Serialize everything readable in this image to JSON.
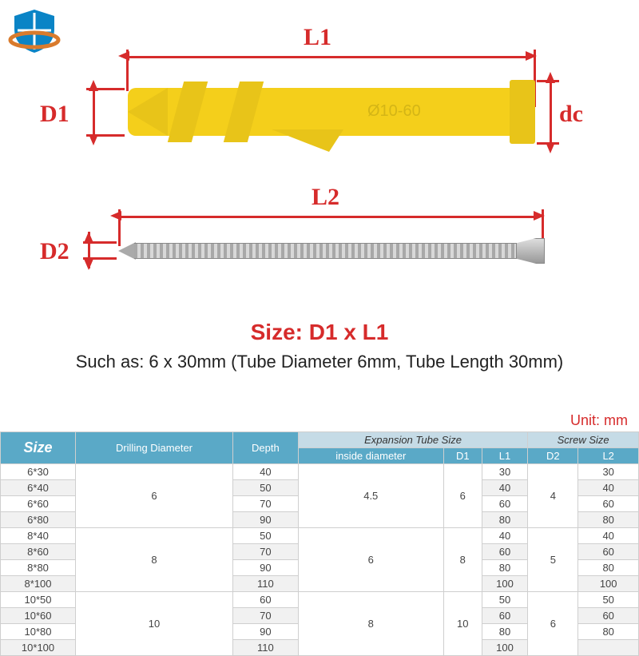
{
  "colors": {
    "accent_red": "#d62b2b",
    "anchor_yellow": "#f4cf1b",
    "table_header_bg": "#5aa9c7",
    "table_group_bg": "#c5dbe6",
    "table_border": "#cfcfcf",
    "alt_row": "#f1f1f1",
    "logo_blue": "#0a84c6",
    "logo_orange": "#d97b2d"
  },
  "labels": {
    "L1": "L1",
    "D1": "D1",
    "dc": "dc",
    "L2": "L2",
    "D2": "D2",
    "emboss": "Ø10-60"
  },
  "size_title": "Size: D1 x L1",
  "size_sub": "Such as: 6 x 30mm (Tube Diameter 6mm, Tube Length 30mm)",
  "unit": "Unit: mm",
  "table": {
    "headers": {
      "size": "Size",
      "drill": "Drilling Diameter",
      "depth": "Depth",
      "expansion": "Expansion Tube Size",
      "screw": "Screw Size",
      "inside": "inside diameter",
      "D1": "D1",
      "L1": "L1",
      "D2": "D2",
      "L2": "L2"
    },
    "groups": [
      {
        "drill": "6",
        "inside": "4.5",
        "d1": "6",
        "d2": "4",
        "rows": [
          {
            "size": "6*30",
            "depth": "40",
            "l1": "30",
            "l2": "30"
          },
          {
            "size": "6*40",
            "depth": "50",
            "l1": "40",
            "l2": "40"
          },
          {
            "size": "6*60",
            "depth": "70",
            "l1": "60",
            "l2": "60"
          },
          {
            "size": "6*80",
            "depth": "90",
            "l1": "80",
            "l2": "80"
          }
        ]
      },
      {
        "drill": "8",
        "inside": "6",
        "d1": "8",
        "d2": "5",
        "rows": [
          {
            "size": "8*40",
            "depth": "50",
            "l1": "40",
            "l2": "40"
          },
          {
            "size": "8*60",
            "depth": "70",
            "l1": "60",
            "l2": "60"
          },
          {
            "size": "8*80",
            "depth": "90",
            "l1": "80",
            "l2": "80"
          },
          {
            "size": "8*100",
            "depth": "110",
            "l1": "100",
            "l2": "100"
          }
        ]
      },
      {
        "drill": "10",
        "inside": "8",
        "d1": "10",
        "d2": "6",
        "rows": [
          {
            "size": "10*50",
            "depth": "60",
            "l1": "50",
            "l2": "50"
          },
          {
            "size": "10*60",
            "depth": "70",
            "l1": "60",
            "l2": "60"
          },
          {
            "size": "10*80",
            "depth": "90",
            "l1": "80",
            "l2": "80"
          },
          {
            "size": "10*100",
            "depth": "110",
            "l1": "100",
            "l2": ""
          }
        ]
      }
    ]
  }
}
